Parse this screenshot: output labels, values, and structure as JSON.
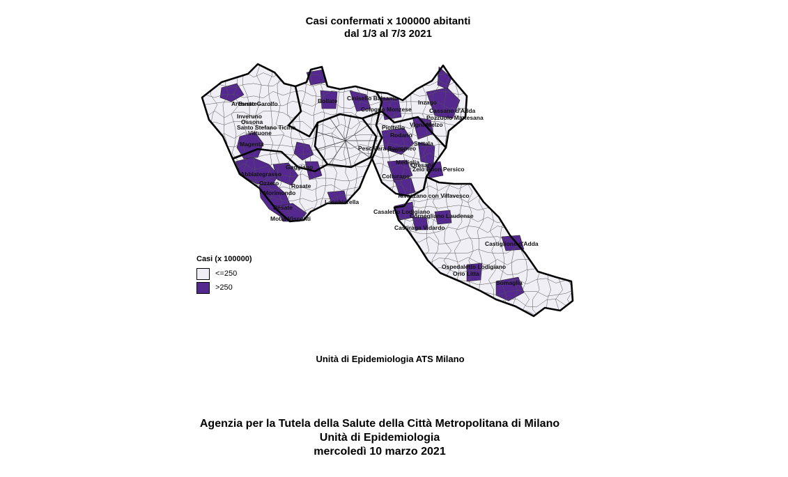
{
  "title": {
    "line1": "Casi confermati x 100000 abitanti",
    "line2": "dal 1/3 al 7/3 2021"
  },
  "colors": {
    "low": "#f0eff6",
    "high": "#54288f",
    "border": "#000000"
  },
  "legend": {
    "title": "Casi (x 100000)",
    "items": [
      {
        "label": "<=250",
        "class": "low"
      },
      {
        "label": ">250",
        "class": "high"
      }
    ]
  },
  "map_labels": [
    "Magenta",
    "Abbiategrasso",
    "Ozzero",
    "Morimondo",
    "Besate",
    "Motta Visconti",
    "Lacchiarella",
    "Casaletto Lodigiano",
    "Cornegliano Laudense",
    "Castiraga Vidardo",
    "Castiglione d'Adda",
    "Ospedaletto Lodigiano",
    "Orio Litta",
    "Somaglia",
    "Pioltello",
    "Rodano",
    "Settala",
    "Mediglia",
    "Colturano",
    "Vignate",
    "Melzo",
    "Pozzuolo Martesana",
    "Cassano d'Adda",
    "Inzago",
    "Arconate",
    "Busto Garolfo",
    "Inveruno",
    "Ossona",
    "Santo Stefano Ticino",
    "Vittuone",
    "Gaggiano",
    "Rosate",
    "Dresano",
    "Bollate",
    "Cinisello Balsamo",
    "Cologno Monzese",
    "Peschiera Borromeo",
    "Paullo",
    "Zelo Buon Persico",
    "Tavazzano con Villavesco"
  ],
  "credit": "Unità di Epidemiologia ATS Milano",
  "footer": {
    "line1": "Agenzia per la Tutela della Salute della Città Metropolitana di Milano",
    "line2": "Unità di Epidemiologia",
    "line3": "mercoledì 10 marzo 2021"
  }
}
